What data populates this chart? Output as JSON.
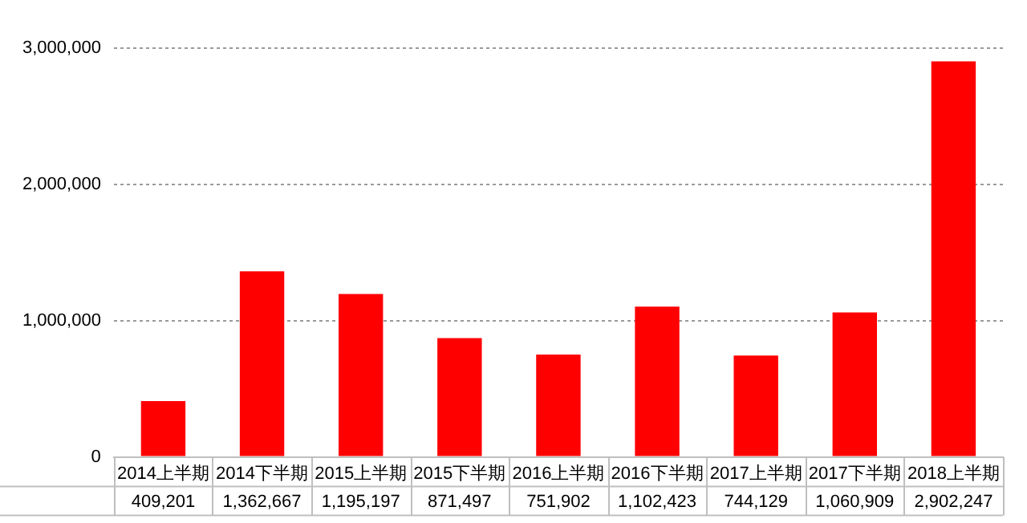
{
  "chart_data": {
    "type": "bar",
    "categories": [
      "2014上半期",
      "2014下半期",
      "2015上半期",
      "2015下半期",
      "2016上半期",
      "2016下半期",
      "2017上半期",
      "2017下半期",
      "2018上半期"
    ],
    "values": [
      409201,
      1362667,
      1195197,
      871497,
      751902,
      1102423,
      744129,
      1060909,
      2902247
    ],
    "value_labels": [
      "409,201",
      "1,362,667",
      "1,195,197",
      "871,497",
      "751,902",
      "1,102,423",
      "744,129",
      "1,060,909",
      "2,902,247"
    ],
    "color": "#ff0000",
    "ylim": [
      0,
      3000000
    ],
    "yticks": [
      {
        "value": 0,
        "label": "0"
      },
      {
        "value": 1000000,
        "label": "1,000,000"
      },
      {
        "value": 2000000,
        "label": "2,000,000"
      },
      {
        "value": 3000000,
        "label": "3,000,000"
      }
    ],
    "grid": "y"
  }
}
